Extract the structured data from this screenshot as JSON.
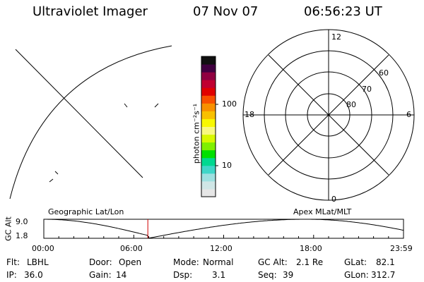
{
  "header": {
    "title": "Ultraviolet Imager",
    "date": "07 Nov 07",
    "time": "06:56:23 UT"
  },
  "colorbar": {
    "unit_label": "photon cm⁻²s⁻¹",
    "tick_100": "100",
    "tick_10": "10",
    "colors": [
      "#e6e6e6",
      "#cfe6e6",
      "#9ee0e0",
      "#40d6c8",
      "#00d890",
      "#00e000",
      "#80f000",
      "#d8f800",
      "#f8f880",
      "#f8f800",
      "#f8c000",
      "#f89000",
      "#f85000",
      "#e00000",
      "#c00030",
      "#900040",
      "#400040",
      "#101010"
    ]
  },
  "polar": {
    "mlt_labels": {
      "top": "12",
      "left": "18",
      "right": "6",
      "bottom": "0"
    },
    "lat_labels": [
      "60",
      "70",
      "80"
    ]
  },
  "timeline": {
    "ylabel": "GC Alt",
    "ymax_label": "9.0",
    "ymin_label": "1.8",
    "left_title": "Geographic Lat/Lon",
    "right_title": "Apex MLat/MLT",
    "x_ticks": [
      "00:00",
      "06:00",
      "12:00",
      "18:00",
      "23:59"
    ],
    "marker_time_hours": 6.94,
    "marker_color": "#d00000"
  },
  "info": {
    "flt_label": "Flt:",
    "flt_value": "LBHL",
    "ip_label": "IP:",
    "ip_value": "36.0",
    "door_label": "Door:",
    "door_value": "Open",
    "gain_label": "Gain:",
    "gain_value": "14",
    "mode_label": "Mode:",
    "mode_value": "Normal",
    "dsp_label": "Dsp:",
    "dsp_value": "3.1",
    "gcalt_label": "GC Alt:",
    "gcalt_value": "2.1 Re",
    "seq_label": "Seq:",
    "seq_value": "39",
    "glat_label": "GLat:",
    "glat_value": "82.1",
    "glon_label": "GLon:",
    "glon_value": "312.7"
  }
}
